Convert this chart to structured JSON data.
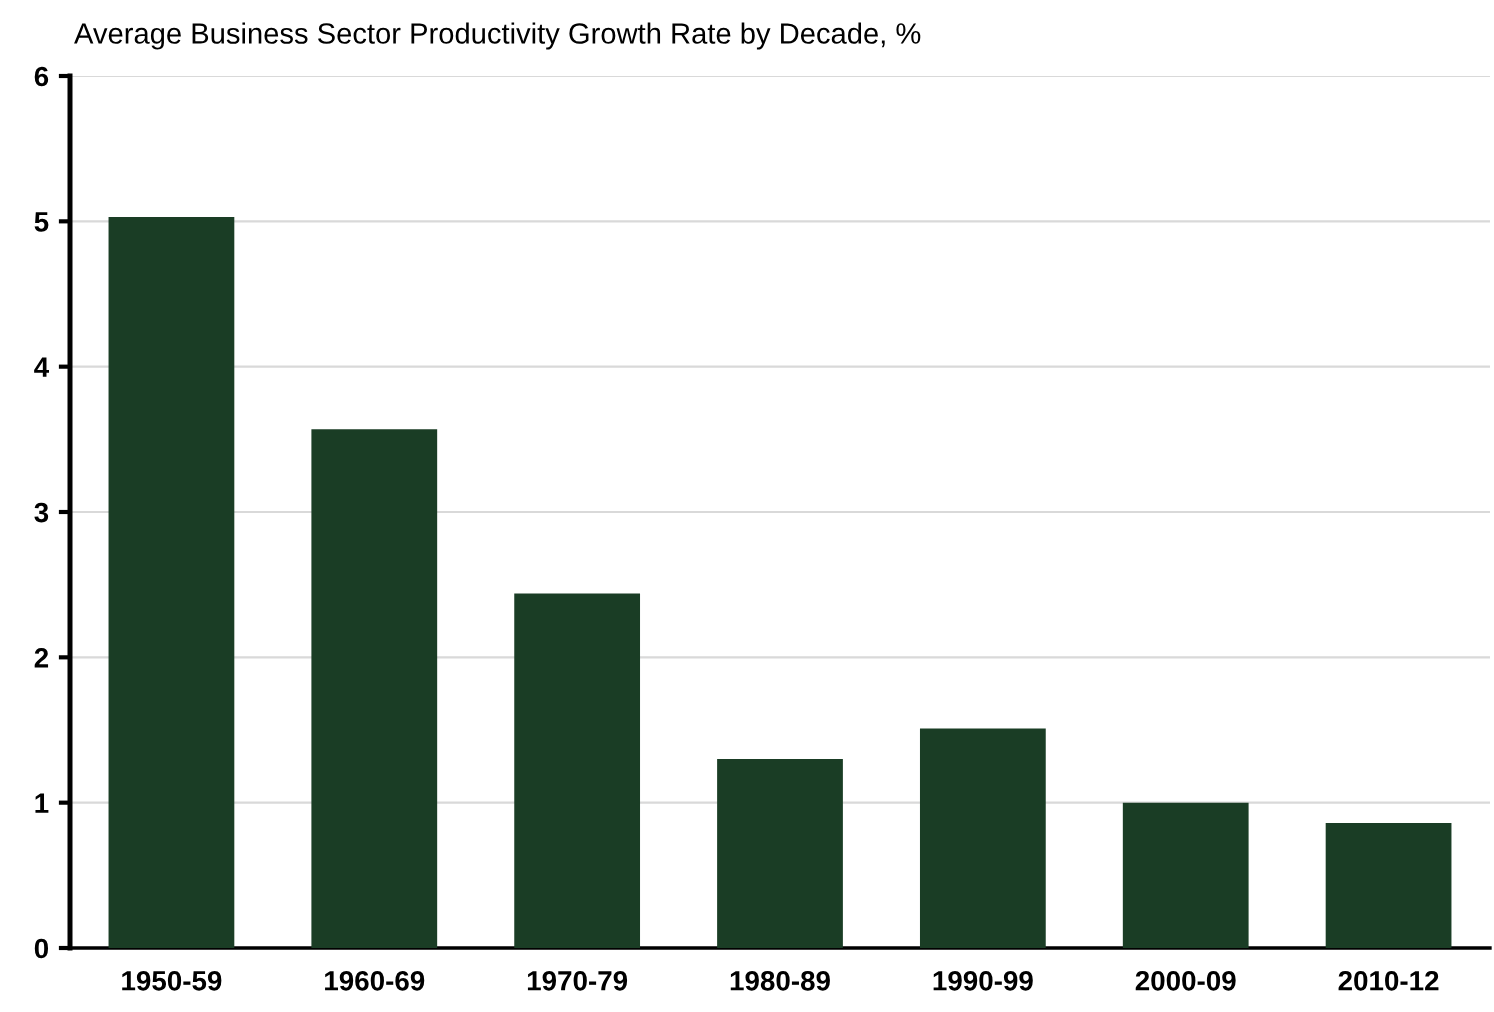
{
  "chart_data": {
    "type": "bar",
    "title": "Average Business Sector Productivity Growth Rate by Decade, %",
    "categories": [
      "1950-59",
      "1960-69",
      "1970-79",
      "1980-89",
      "1990-99",
      "2000-09",
      "2010-12"
    ],
    "values": [
      5.03,
      3.57,
      2.44,
      1.3,
      1.51,
      1.0,
      0.86
    ],
    "color": "#1a3d25",
    "ylim": [
      0,
      6
    ],
    "yticks": [
      0,
      1,
      2,
      3,
      4,
      5,
      6
    ],
    "grid": "y",
    "legend": false
  }
}
